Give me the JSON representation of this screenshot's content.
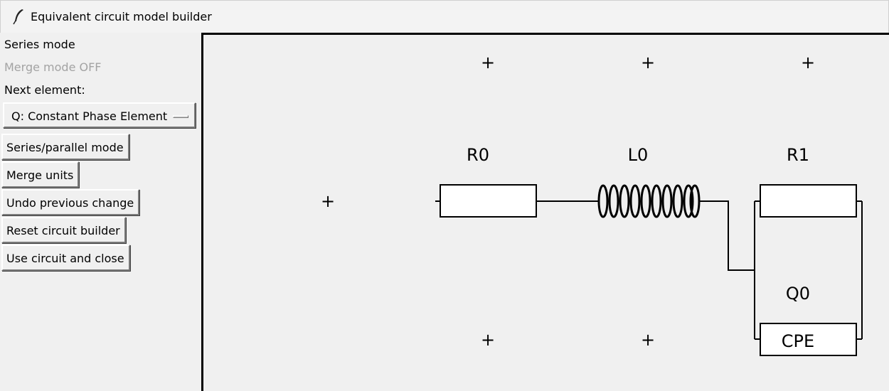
{
  "window": {
    "title": "Equivalent circuit model builder",
    "icon": "feather-icon"
  },
  "sidebar": {
    "mode_label": "Series mode",
    "merge_label": "Merge mode OFF",
    "next_element_label": "Next element:",
    "element_select_value": "Q: Constant Phase Element",
    "buttons": {
      "series_parallel": "Series/parallel mode",
      "merge_units": "Merge units",
      "undo": "Undo previous change",
      "reset": "Reset circuit builder",
      "use_close": "Use circuit and close"
    }
  },
  "canvas": {
    "add_marker_symbol": "+",
    "elements": {
      "r0": {
        "label": "R0",
        "type": "resistor"
      },
      "l0": {
        "label": "L0",
        "type": "inductor"
      },
      "r1": {
        "label": "R1",
        "type": "resistor"
      },
      "q0": {
        "label": "Q0",
        "type": "cpe",
        "box_text": "CPE"
      }
    }
  }
}
